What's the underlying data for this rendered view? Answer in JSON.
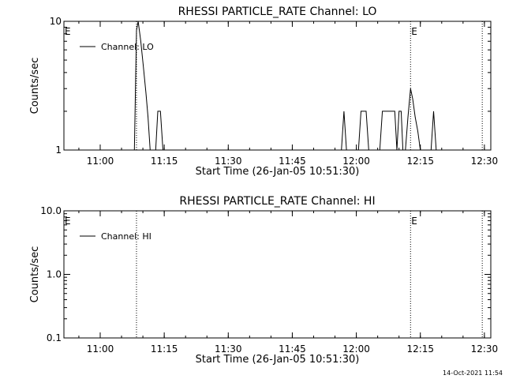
{
  "timestamp": "14-Oct-2021 11:54",
  "chart_data": [
    {
      "type": "line",
      "title": "RHESSI PARTICLE_RATE Channel: LO",
      "xlabel": "Start Time (26-Jan-05 10:51:30)",
      "ylabel": "Counts/sec",
      "y_scale": "log",
      "ylim": [
        1,
        10
      ],
      "yticks": [
        1,
        10
      ],
      "ytick_labels": [
        "1",
        "10"
      ],
      "xlim_minutes": [
        0,
        100
      ],
      "xticks_minutes": [
        8.5,
        23.5,
        38.5,
        53.5,
        68.5,
        83.5,
        98.5
      ],
      "xtick_labels": [
        "11:00",
        "11:15",
        "11:30",
        "11:45",
        "12:00",
        "12:15",
        "12:30"
      ],
      "legend": "top-left",
      "series": [
        {
          "name": "Channel: LO",
          "x": [
            0,
            16.5,
            17.0,
            17.4,
            18.0,
            18.6,
            19.2,
            19.7,
            20.2,
            21.5,
            22.0,
            22.6,
            23.2,
            65.0,
            65.6,
            66.2,
            69.0,
            69.6,
            70.2,
            70.8,
            71.4,
            74.0,
            74.6,
            75.1,
            75.6,
            75.9,
            76.4,
            77.0,
            77.5,
            78.0,
            78.5,
            79.0,
            79.4,
            80.0,
            80.6,
            81.2,
            81.7,
            82.3,
            82.9,
            83.5,
            84.1,
            86.0,
            86.6,
            87.2,
            100
          ],
          "y": [
            1,
            1,
            8.5,
            10,
            7,
            4.5,
            2.8,
            1.8,
            1,
            1,
            2,
            2,
            1,
            1,
            2,
            1,
            1,
            2,
            2,
            2,
            1,
            1,
            2,
            2,
            2,
            2,
            2,
            2,
            2,
            1,
            2,
            2,
            1,
            1,
            1.8,
            3,
            2.5,
            1.8,
            1.4,
            1,
            1,
            1,
            2,
            1,
            1
          ]
        }
      ],
      "annotations": [
        {
          "label": "E",
          "x_minutes": 0
        },
        {
          "label": "E",
          "x_minutes": 81.2
        }
      ],
      "vertical_lines_minutes": [
        17.0,
        81.2,
        98.0
      ]
    },
    {
      "type": "line",
      "title": "RHESSI PARTICLE_RATE Channel: HI",
      "xlabel": "Start Time (26-Jan-05 10:51:30)",
      "ylabel": "Counts/sec",
      "y_scale": "log",
      "ylim": [
        0.1,
        10.0
      ],
      "yticks": [
        0.1,
        1.0,
        10.0
      ],
      "ytick_labels": [
        "0.1",
        "1.0",
        "10.0"
      ],
      "xlim_minutes": [
        0,
        100
      ],
      "xticks_minutes": [
        8.5,
        23.5,
        38.5,
        53.5,
        68.5,
        83.5,
        98.5
      ],
      "xtick_labels": [
        "11:00",
        "11:15",
        "11:30",
        "11:45",
        "12:00",
        "12:15",
        "12:30"
      ],
      "legend": "top-left",
      "series": [
        {
          "name": "Channel: HI",
          "x": [],
          "y": []
        }
      ],
      "annotations": [
        {
          "label": "E",
          "x_minutes": 0
        },
        {
          "label": "E",
          "x_minutes": 81.2
        }
      ],
      "vertical_lines_minutes": [
        17.0,
        81.2,
        98.0
      ]
    }
  ]
}
